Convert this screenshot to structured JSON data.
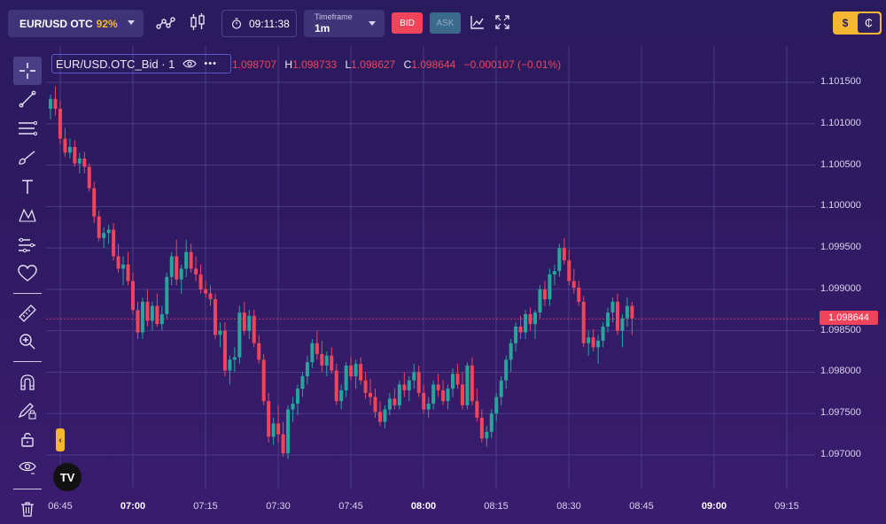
{
  "topbar": {
    "pair": "EUR/USD OTC",
    "payout": "92%",
    "timer": "09:11:38",
    "timeframe_label": "Timeframe",
    "timeframe_value": "1m",
    "bid_label": "BID",
    "ask_label": "ASK",
    "currency_usd": "$",
    "currency_alt": "₵"
  },
  "legend": {
    "symbol": "EUR/USD.OTC_Bid · 1",
    "more": "•••",
    "o_key": "O",
    "open": "1.098707",
    "h_key": "H",
    "high": "1.098733",
    "l_key": "L",
    "low": "1.098627",
    "c_key": "C",
    "close": "1.098644",
    "change": "−0.000107 (−0.01%)"
  },
  "price_axis": {
    "labels": [
      "1.101500",
      "1.101000",
      "1.100500",
      "1.100000",
      "1.099500",
      "1.099000",
      "1.098500",
      "1.098000",
      "1.097500",
      "1.097000"
    ],
    "current_price": "1.098644"
  },
  "time_axis": {
    "labels": [
      {
        "text": "06:45",
        "bold": false
      },
      {
        "text": "07:00",
        "bold": true
      },
      {
        "text": "07:15",
        "bold": false
      },
      {
        "text": "07:30",
        "bold": false
      },
      {
        "text": "07:45",
        "bold": false
      },
      {
        "text": "08:00",
        "bold": true
      },
      {
        "text": "08:15",
        "bold": false
      },
      {
        "text": "08:30",
        "bold": false
      },
      {
        "text": "08:45",
        "bold": false
      },
      {
        "text": "09:00",
        "bold": true
      },
      {
        "text": "09:15",
        "bold": false
      }
    ]
  },
  "toolbar": {
    "tools": [
      "crosshair-icon",
      "trend-line-icon",
      "fib-retracement-icon",
      "brush-icon",
      "text-icon",
      "pattern-icon",
      "forecast-icon",
      "heart-icon",
      "ruler-icon",
      "zoom-in-icon",
      "magnet-icon",
      "lock-drawing-icon",
      "lock-icon",
      "eye-icon",
      "trash-icon"
    ],
    "edge_tab": "‹",
    "logo_text": "TV"
  },
  "colors": {
    "up": "#26a69a",
    "down": "#ef4459",
    "accent": "#f5b731",
    "grid": "#4b3a86"
  },
  "chart_data": {
    "type": "candlestick",
    "title": "EUR/USD.OTC_Bid · 1",
    "timeframe": "1m",
    "y_range": [
      1.09685,
      1.10165
    ],
    "y_ticks": [
      1.097,
      1.0975,
      1.098,
      1.0985,
      1.099,
      1.0995,
      1.1,
      1.1005,
      1.101,
      1.1015
    ],
    "x_ticks": [
      "06:45",
      "07:00",
      "07:15",
      "07:30",
      "07:45",
      "08:00",
      "08:15",
      "08:30",
      "08:45",
      "09:00",
      "09:15"
    ],
    "current_price": 1.098644,
    "candles": [
      [
        1.10118,
        1.10135,
        1.10105,
        1.1013
      ],
      [
        1.1013,
        1.10145,
        1.1011,
        1.10118
      ],
      [
        1.10118,
        1.10128,
        1.10075,
        1.10082
      ],
      [
        1.10082,
        1.10095,
        1.1006,
        1.10065
      ],
      [
        1.10065,
        1.10082,
        1.10058,
        1.10072
      ],
      [
        1.10072,
        1.1008,
        1.10048,
        1.10052
      ],
      [
        1.10052,
        1.10065,
        1.1004,
        1.10058
      ],
      [
        1.10058,
        1.10066,
        1.1004,
        1.10048
      ],
      [
        1.10048,
        1.10052,
        1.10018,
        1.10022
      ],
      [
        1.10022,
        1.1003,
        1.0998,
        1.09988
      ],
      [
        1.09988,
        1.09995,
        1.09958,
        1.09962
      ],
      [
        1.09962,
        1.09975,
        1.0995,
        1.09968
      ],
      [
        1.09968,
        1.09978,
        1.09955,
        1.09972
      ],
      [
        1.09972,
        1.0998,
        1.09935,
        1.0994
      ],
      [
        1.0994,
        1.09955,
        1.0992,
        1.09925
      ],
      [
        1.09925,
        1.0994,
        1.09905,
        1.0993
      ],
      [
        1.0993,
        1.09945,
        1.09905,
        1.0991
      ],
      [
        1.0991,
        1.0992,
        1.0987,
        1.09875
      ],
      [
        1.09875,
        1.09885,
        1.0984,
        1.09848
      ],
      [
        1.09848,
        1.0989,
        1.0984,
        1.09885
      ],
      [
        1.09885,
        1.099,
        1.09855,
        1.09862
      ],
      [
        1.09862,
        1.09885,
        1.0985,
        1.0988
      ],
      [
        1.0988,
        1.09895,
        1.09855,
        1.09858
      ],
      [
        1.09858,
        1.0988,
        1.0985,
        1.0987
      ],
      [
        1.0987,
        1.0992,
        1.09865,
        1.09915
      ],
      [
        1.09915,
        1.09945,
        1.09905,
        1.0994
      ],
      [
        1.0994,
        1.0996,
        1.09905,
        1.09912
      ],
      [
        1.09912,
        1.0993,
        1.09895,
        1.09925
      ],
      [
        1.09925,
        1.0996,
        1.09915,
        1.09945
      ],
      [
        1.09945,
        1.09955,
        1.0992,
        1.09925
      ],
      [
        1.09925,
        1.0994,
        1.0991,
        1.09918
      ],
      [
        1.09918,
        1.0993,
        1.09895,
        1.099
      ],
      [
        1.099,
        1.0991,
        1.0989,
        1.09895
      ],
      [
        1.09895,
        1.09905,
        1.0988,
        1.09888
      ],
      [
        1.09888,
        1.09895,
        1.0984,
        1.09845
      ],
      [
        1.09845,
        1.0986,
        1.0983,
        1.0985
      ],
      [
        1.0985,
        1.0986,
        1.09795,
        1.09802
      ],
      [
        1.09802,
        1.0982,
        1.09785,
        1.09815
      ],
      [
        1.09815,
        1.0983,
        1.098,
        1.09818
      ],
      [
        1.09818,
        1.0988,
        1.0981,
        1.09872
      ],
      [
        1.09872,
        1.09885,
        1.09845,
        1.0985
      ],
      [
        1.0985,
        1.09875,
        1.0984,
        1.09868
      ],
      [
        1.09868,
        1.09875,
        1.0983,
        1.09835
      ],
      [
        1.09835,
        1.09845,
        1.0981,
        1.09815
      ],
      [
        1.09815,
        1.09822,
        1.0976,
        1.09765
      ],
      [
        1.09765,
        1.09775,
        1.09715,
        1.09722
      ],
      [
        1.09722,
        1.09745,
        1.09712,
        1.09738
      ],
      [
        1.09738,
        1.0976,
        1.09715,
        1.09725
      ],
      [
        1.09725,
        1.0974,
        1.09698,
        1.09702
      ],
      [
        1.09702,
        1.0976,
        1.09695,
        1.09755
      ],
      [
        1.09755,
        1.0977,
        1.0974,
        1.09762
      ],
      [
        1.09762,
        1.09785,
        1.09748,
        1.0978
      ],
      [
        1.0978,
        1.098,
        1.0977,
        1.09795
      ],
      [
        1.09795,
        1.0982,
        1.09785,
        1.09812
      ],
      [
        1.09812,
        1.0984,
        1.09805,
        1.09835
      ],
      [
        1.09835,
        1.0985,
        1.09815,
        1.09822
      ],
      [
        1.09822,
        1.09838,
        1.098,
        1.09808
      ],
      [
        1.09808,
        1.09825,
        1.09795,
        1.0982
      ],
      [
        1.0982,
        1.0983,
        1.09798,
        1.09802
      ],
      [
        1.09802,
        1.0981,
        1.0976,
        1.09765
      ],
      [
        1.09765,
        1.09785,
        1.09755,
        1.09778
      ],
      [
        1.09778,
        1.09812,
        1.0977,
        1.09808
      ],
      [
        1.09808,
        1.09818,
        1.0979,
        1.09795
      ],
      [
        1.09795,
        1.09815,
        1.0978,
        1.0981
      ],
      [
        1.0981,
        1.09818,
        1.09785,
        1.0979
      ],
      [
        1.0979,
        1.098,
        1.09768,
        1.09775
      ],
      [
        1.09775,
        1.09792,
        1.0976,
        1.0977
      ],
      [
        1.0977,
        1.0978,
        1.09745,
        1.09752
      ],
      [
        1.09752,
        1.09765,
        1.09735,
        1.0974
      ],
      [
        1.0974,
        1.0976,
        1.09732,
        1.09755
      ],
      [
        1.09755,
        1.09775,
        1.09748,
        1.09768
      ],
      [
        1.09768,
        1.0978,
        1.09755,
        1.0976
      ],
      [
        1.0976,
        1.0979,
        1.09755,
        1.09785
      ],
      [
        1.09785,
        1.098,
        1.0977,
        1.09778
      ],
      [
        1.09778,
        1.09795,
        1.09765,
        1.0979
      ],
      [
        1.0979,
        1.0981,
        1.0978,
        1.098
      ],
      [
        1.098,
        1.09808,
        1.0977,
        1.09775
      ],
      [
        1.09775,
        1.09785,
        1.0975,
        1.09755
      ],
      [
        1.09755,
        1.0977,
        1.09745,
        1.09762
      ],
      [
        1.09762,
        1.0979,
        1.09755,
        1.09785
      ],
      [
        1.09785,
        1.09798,
        1.0977,
        1.09778
      ],
      [
        1.09778,
        1.0979,
        1.0976,
        1.09765
      ],
      [
        1.09765,
        1.09785,
        1.09755,
        1.0978
      ],
      [
        1.0978,
        1.09805,
        1.0977,
        1.09798
      ],
      [
        1.09798,
        1.0981,
        1.0978,
        1.09785
      ],
      [
        1.09785,
        1.098,
        1.09755,
        1.0976
      ],
      [
        1.0976,
        1.09812,
        1.09755,
        1.09808
      ],
      [
        1.09808,
        1.09818,
        1.0976,
        1.09765
      ],
      [
        1.09765,
        1.0978,
        1.0974,
        1.09745
      ],
      [
        1.09745,
        1.09755,
        1.09715,
        1.0972
      ],
      [
        1.0972,
        1.09735,
        1.0971,
        1.09728
      ],
      [
        1.09728,
        1.09755,
        1.0972,
        1.0975
      ],
      [
        1.0975,
        1.09775,
        1.0974,
        1.0977
      ],
      [
        1.0977,
        1.09795,
        1.0976,
        1.0979
      ],
      [
        1.0979,
        1.0982,
        1.0978,
        1.09815
      ],
      [
        1.09815,
        1.0984,
        1.098,
        1.09835
      ],
      [
        1.09835,
        1.0986,
        1.09825,
        1.09855
      ],
      [
        1.09855,
        1.09868,
        1.0984,
        1.09848
      ],
      [
        1.09848,
        1.09875,
        1.0984,
        1.0987
      ],
      [
        1.0987,
        1.09878,
        1.0985,
        1.09858
      ],
      [
        1.09858,
        1.09875,
        1.0984,
        1.09872
      ],
      [
        1.09872,
        1.09905,
        1.09865,
        1.099
      ],
      [
        1.099,
        1.0991,
        1.0988,
        1.09888
      ],
      [
        1.09888,
        1.09925,
        1.0988,
        1.09918
      ],
      [
        1.09918,
        1.0993,
        1.09905,
        1.09922
      ],
      [
        1.09922,
        1.09955,
        1.09915,
        1.0995
      ],
      [
        1.0995,
        1.09962,
        1.0993,
        1.09935
      ],
      [
        1.09935,
        1.09948,
        1.09905,
        1.0991
      ],
      [
        1.0991,
        1.09925,
        1.09895,
        1.09902
      ],
      [
        1.09902,
        1.0991,
        1.0988,
        1.09885
      ],
      [
        1.09885,
        1.09892,
        1.0983,
        1.09835
      ],
      [
        1.09835,
        1.0985,
        1.0982,
        1.09842
      ],
      [
        1.09842,
        1.09852,
        1.09825,
        1.0983
      ],
      [
        1.0983,
        1.09845,
        1.0981,
        1.09838
      ],
      [
        1.09838,
        1.0986,
        1.0983,
        1.09855
      ],
      [
        1.09855,
        1.09878,
        1.09848,
        1.09872
      ],
      [
        1.09872,
        1.0989,
        1.0986,
        1.09885
      ],
      [
        1.09885,
        1.09895,
        1.09845,
        1.0985
      ],
      [
        1.0985,
        1.0987,
        1.0983,
        1.09865
      ],
      [
        1.09865,
        1.0989,
        1.09855,
        1.0988
      ],
      [
        1.0988,
        1.09885,
        1.09845,
        1.09865
      ]
    ]
  }
}
